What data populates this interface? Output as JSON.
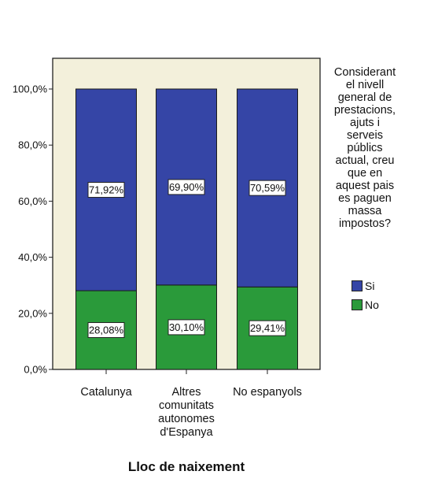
{
  "chart_data": {
    "type": "bar",
    "stacked": true,
    "categories": [
      [
        "Catalunya"
      ],
      [
        "Altres",
        "comunitats",
        "autonomes",
        "d'Espanya"
      ],
      [
        "No espanyols"
      ]
    ],
    "series": [
      {
        "name": "No",
        "values": [
          28.08,
          30.1,
          29.41
        ],
        "labels": [
          "28,08%",
          "30,10%",
          "29,41%"
        ],
        "color": "#2a9a3a"
      },
      {
        "name": "Si",
        "values": [
          71.92,
          69.9,
          70.59
        ],
        "labels": [
          "71,92%",
          "69,90%",
          "70,59%"
        ],
        "color": "#3545a6"
      }
    ],
    "xlabel": "Lloc de naixement",
    "ylabel": "",
    "ylim": [
      0,
      100
    ],
    "yticks": [
      "0,0%",
      "20,0%",
      "40,0%",
      "60,0%",
      "80,0%",
      "100,0%"
    ],
    "ytick_values": [
      0,
      20,
      40,
      60,
      80,
      100
    ],
    "grid": false,
    "plot_background": "#f3f0db",
    "legend": {
      "placement": "right",
      "title_lines": [
        "Considerant",
        "el nivell",
        "general de",
        "prestacions,",
        "ajuts i",
        "serveis",
        "públics",
        "actual, creu",
        "que en",
        "aquest pais",
        "es paguen",
        "massa",
        "impostos?"
      ],
      "items": [
        {
          "label": "Si",
          "color": "#3545a6"
        },
        {
          "label": "No",
          "color": "#2a9a3a"
        }
      ]
    }
  }
}
